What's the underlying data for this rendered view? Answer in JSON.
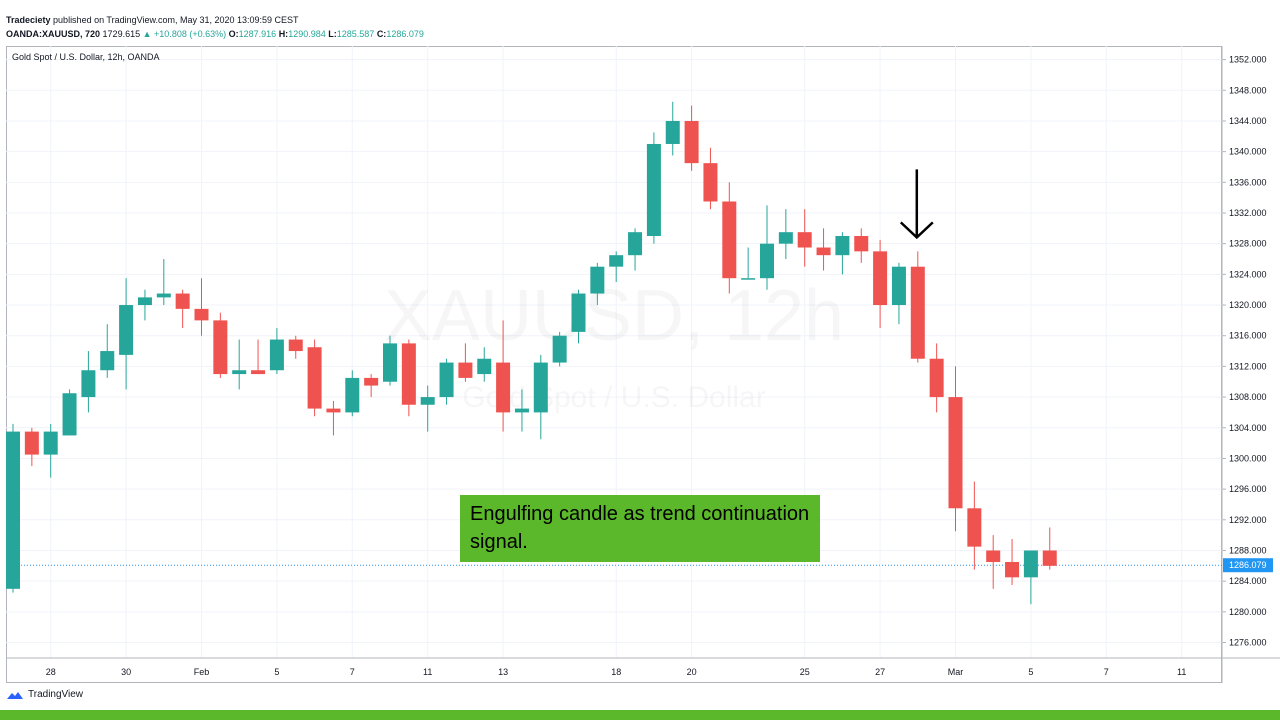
{
  "header": {
    "publisher": "Tradeciety",
    "published_text": "published on TradingView.com, May 31, 2020 13:09:59 CEST",
    "symbol": "OANDA:XAUUSD, 720",
    "last": "1729.615",
    "change_arrow": "▲",
    "change": "+10.808 (+0.63%)",
    "o_label": "O:",
    "o_value": "1287.916",
    "h_label": "H:",
    "h_value": "1290.984",
    "l_label": "L:",
    "l_value": "1285.587",
    "c_label": "C:",
    "c_value": "1286.079"
  },
  "pane_title": "Gold Spot / U.S. Dollar, 12h, OANDA",
  "annotation": "Engulfing candle as trend continuation signal.",
  "brand": "TradingView",
  "colors": {
    "up": "#26a69a",
    "down": "#ef5350",
    "accent_green": "#5ab82a",
    "current_line": "#2196f3"
  },
  "chart_data": {
    "type": "candlestick",
    "title": "Gold Spot / U.S. Dollar, 12h, OANDA",
    "watermark": [
      "XAUUSD, 12h",
      "Gold Spot / U.S. Dollar"
    ],
    "ylim": [
      1274,
      1354
    ],
    "y_ticks": [
      "1276.000",
      "1280.000",
      "1284.000",
      "1288.000",
      "1292.000",
      "1296.000",
      "1300.000",
      "1304.000",
      "1308.000",
      "1312.000",
      "1316.000",
      "1320.000",
      "1324.000",
      "1328.000",
      "1332.000",
      "1336.000",
      "1340.000",
      "1344.000",
      "1348.000",
      "1352.000"
    ],
    "x_ticks": [
      {
        "label": "28",
        "i": 2
      },
      {
        "label": "30",
        "i": 6
      },
      {
        "label": "Feb",
        "i": 10
      },
      {
        "label": "5",
        "i": 14
      },
      {
        "label": "7",
        "i": 18
      },
      {
        "label": "11",
        "i": 22
      },
      {
        "label": "13",
        "i": 26
      },
      {
        "label": "18",
        "i": 32
      },
      {
        "label": "20",
        "i": 36
      },
      {
        "label": "25",
        "i": 42
      },
      {
        "label": "27",
        "i": 46
      },
      {
        "label": "Mar",
        "i": 50
      },
      {
        "label": "5",
        "i": 54
      },
      {
        "label": "7",
        "i": 58
      },
      {
        "label": "11",
        "i": 62
      }
    ],
    "current_price": 1286.079,
    "current_price_label": "1286.079",
    "signal_candle_index": 48,
    "candles": [
      {
        "o": 1283.0,
        "h": 1304.5,
        "l": 1282.5,
        "c": 1303.5
      },
      {
        "o": 1303.5,
        "h": 1304.0,
        "l": 1299.0,
        "c": 1300.5
      },
      {
        "o": 1300.5,
        "h": 1304.5,
        "l": 1297.5,
        "c": 1303.5
      },
      {
        "o": 1303.0,
        "h": 1309.0,
        "l": 1303.0,
        "c": 1308.5
      },
      {
        "o": 1308.0,
        "h": 1314.0,
        "l": 1306.0,
        "c": 1311.5
      },
      {
        "o": 1311.5,
        "h": 1317.5,
        "l": 1310.5,
        "c": 1314.0
      },
      {
        "o": 1313.5,
        "h": 1323.5,
        "l": 1309.0,
        "c": 1320.0
      },
      {
        "o": 1320.0,
        "h": 1322.0,
        "l": 1318.0,
        "c": 1321.0
      },
      {
        "o": 1321.0,
        "h": 1326.0,
        "l": 1320.0,
        "c": 1321.5
      },
      {
        "o": 1321.5,
        "h": 1322.0,
        "l": 1317.0,
        "c": 1319.5
      },
      {
        "o": 1319.5,
        "h": 1323.5,
        "l": 1316.0,
        "c": 1318.0
      },
      {
        "o": 1318.0,
        "h": 1319.0,
        "l": 1310.5,
        "c": 1311.0
      },
      {
        "o": 1311.0,
        "h": 1315.5,
        "l": 1309.0,
        "c": 1311.5
      },
      {
        "o": 1311.5,
        "h": 1315.5,
        "l": 1311.0,
        "c": 1311.0
      },
      {
        "o": 1311.5,
        "h": 1317.0,
        "l": 1311.0,
        "c": 1315.5
      },
      {
        "o": 1315.5,
        "h": 1316.0,
        "l": 1313.0,
        "c": 1314.0
      },
      {
        "o": 1314.5,
        "h": 1315.5,
        "l": 1305.5,
        "c": 1306.5
      },
      {
        "o": 1306.5,
        "h": 1307.5,
        "l": 1303.0,
        "c": 1306.0
      },
      {
        "o": 1306.0,
        "h": 1311.5,
        "l": 1305.5,
        "c": 1310.5
      },
      {
        "o": 1310.5,
        "h": 1311.0,
        "l": 1308.0,
        "c": 1309.5
      },
      {
        "o": 1310.0,
        "h": 1316.0,
        "l": 1309.5,
        "c": 1315.0
      },
      {
        "o": 1315.0,
        "h": 1315.5,
        "l": 1305.5,
        "c": 1307.0
      },
      {
        "o": 1307.0,
        "h": 1309.5,
        "l": 1303.5,
        "c": 1308.0
      },
      {
        "o": 1308.0,
        "h": 1313.0,
        "l": 1307.0,
        "c": 1312.5
      },
      {
        "o": 1312.5,
        "h": 1315.0,
        "l": 1310.0,
        "c": 1310.5
      },
      {
        "o": 1311.0,
        "h": 1314.5,
        "l": 1310.0,
        "c": 1313.0
      },
      {
        "o": 1312.5,
        "h": 1318.0,
        "l": 1303.5,
        "c": 1306.0
      },
      {
        "o": 1306.0,
        "h": 1309.0,
        "l": 1303.5,
        "c": 1306.5
      },
      {
        "o": 1306.0,
        "h": 1313.5,
        "l": 1302.5,
        "c": 1312.5
      },
      {
        "o": 1312.5,
        "h": 1316.5,
        "l": 1312.0,
        "c": 1316.0
      },
      {
        "o": 1316.5,
        "h": 1322.0,
        "l": 1315.0,
        "c": 1321.5
      },
      {
        "o": 1321.5,
        "h": 1325.5,
        "l": 1320.0,
        "c": 1325.0
      },
      {
        "o": 1325.0,
        "h": 1327.0,
        "l": 1323.0,
        "c": 1326.5
      },
      {
        "o": 1326.5,
        "h": 1330.0,
        "l": 1324.5,
        "c": 1329.5
      },
      {
        "o": 1329.0,
        "h": 1342.5,
        "l": 1328.0,
        "c": 1341.0
      },
      {
        "o": 1341.0,
        "h": 1346.5,
        "l": 1339.5,
        "c": 1344.0
      },
      {
        "o": 1344.0,
        "h": 1346.0,
        "l": 1337.5,
        "c": 1338.5
      },
      {
        "o": 1338.5,
        "h": 1340.5,
        "l": 1332.5,
        "c": 1333.5
      },
      {
        "o": 1333.5,
        "h": 1336.0,
        "l": 1321.5,
        "c": 1323.5
      },
      {
        "o": 1323.5,
        "h": 1327.5,
        "l": 1323.5,
        "c": 1323.5
      },
      {
        "o": 1323.5,
        "h": 1333.0,
        "l": 1322.0,
        "c": 1328.0
      },
      {
        "o": 1328.0,
        "h": 1332.5,
        "l": 1326.0,
        "c": 1329.5
      },
      {
        "o": 1329.5,
        "h": 1332.5,
        "l": 1325.0,
        "c": 1327.5
      },
      {
        "o": 1327.5,
        "h": 1330.0,
        "l": 1324.5,
        "c": 1326.5
      },
      {
        "o": 1326.5,
        "h": 1329.5,
        "l": 1324.0,
        "c": 1329.0
      },
      {
        "o": 1329.0,
        "h": 1330.0,
        "l": 1325.5,
        "c": 1327.0
      },
      {
        "o": 1327.0,
        "h": 1328.5,
        "l": 1317.0,
        "c": 1320.0
      },
      {
        "o": 1320.0,
        "h": 1325.5,
        "l": 1317.5,
        "c": 1325.0
      },
      {
        "o": 1325.0,
        "h": 1327.0,
        "l": 1312.5,
        "c": 1313.0
      },
      {
        "o": 1313.0,
        "h": 1315.0,
        "l": 1306.0,
        "c": 1308.0
      },
      {
        "o": 1308.0,
        "h": 1312.0,
        "l": 1290.5,
        "c": 1293.5
      },
      {
        "o": 1293.5,
        "h": 1297.0,
        "l": 1285.5,
        "c": 1288.5
      },
      {
        "o": 1288.0,
        "h": 1290.0,
        "l": 1283.0,
        "c": 1286.5
      },
      {
        "o": 1286.5,
        "h": 1289.5,
        "l": 1283.5,
        "c": 1284.5
      },
      {
        "o": 1284.5,
        "h": 1288.0,
        "l": 1281.0,
        "c": 1288.0
      },
      {
        "o": 1288.0,
        "h": 1291.0,
        "l": 1285.5,
        "c": 1286.0
      }
    ]
  }
}
